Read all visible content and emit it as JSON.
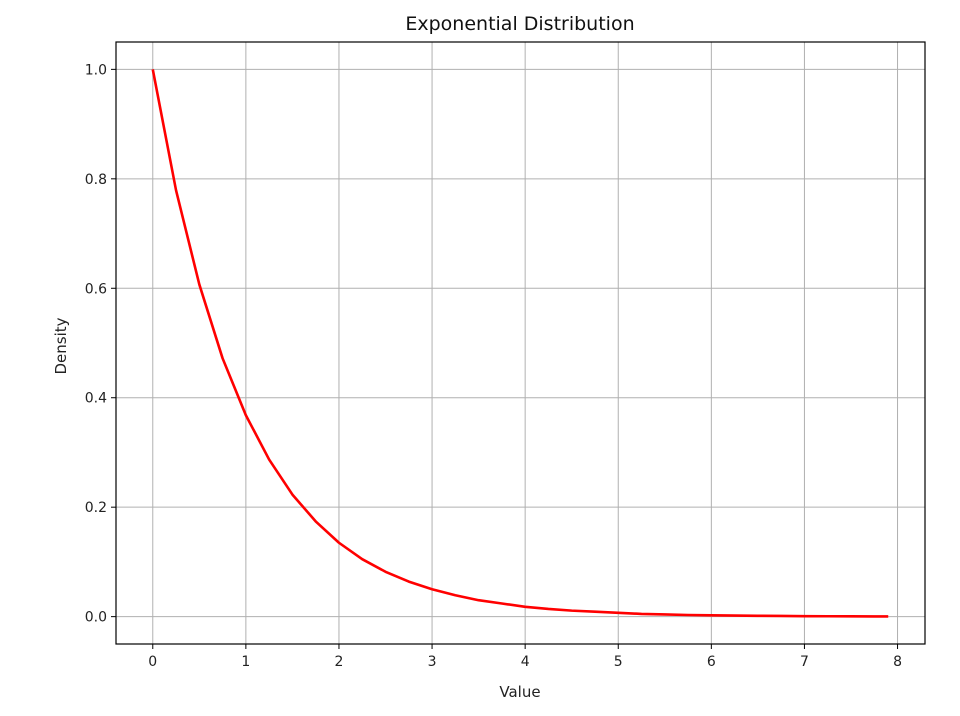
{
  "chart_data": {
    "type": "line",
    "title": "Exponential Distribution",
    "xlabel": "Value",
    "ylabel": "Density",
    "xlim": [
      -0.395,
      8.295
    ],
    "ylim": [
      -0.05,
      1.05
    ],
    "xticks": [
      0,
      1,
      2,
      3,
      4,
      5,
      6,
      7,
      8
    ],
    "yticks": [
      0.0,
      0.2,
      0.4,
      0.6,
      0.8,
      1.0
    ],
    "xtick_labels": [
      "0",
      "1",
      "2",
      "3",
      "4",
      "5",
      "6",
      "7",
      "8"
    ],
    "ytick_labels": [
      "0.0",
      "0.2",
      "0.4",
      "0.6",
      "0.8",
      "1.0"
    ],
    "grid": true,
    "legend": "none",
    "series": [
      {
        "color": "#ff0000",
        "x": [
          0,
          0.25,
          0.5,
          0.75,
          1,
          1.25,
          1.5,
          1.75,
          2,
          2.25,
          2.5,
          2.75,
          3,
          3.25,
          3.5,
          3.75,
          4,
          4.25,
          4.5,
          4.75,
          5,
          5.25,
          5.5,
          5.75,
          6,
          6.25,
          6.5,
          6.75,
          7,
          7.25,
          7.5,
          7.75,
          7.9
        ],
        "y": [
          1.0,
          0.779,
          0.607,
          0.472,
          0.368,
          0.287,
          0.223,
          0.174,
          0.135,
          0.105,
          0.082,
          0.064,
          0.05,
          0.039,
          0.03,
          0.024,
          0.018,
          0.014,
          0.011,
          0.009,
          0.007,
          0.005,
          0.004,
          0.003,
          0.0025,
          0.0019,
          0.0015,
          0.0012,
          0.0009,
          0.0007,
          0.0006,
          0.0004,
          0.0004
        ]
      }
    ]
  }
}
